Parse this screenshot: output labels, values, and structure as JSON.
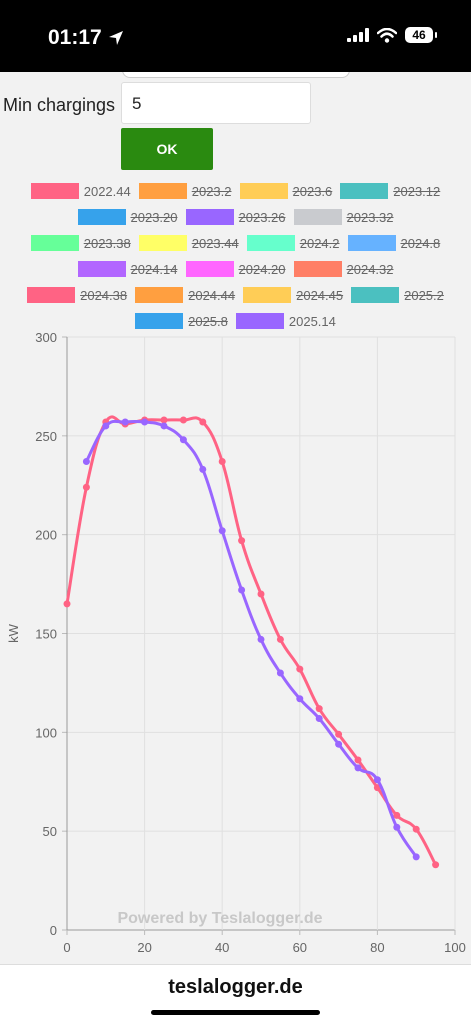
{
  "status_bar": {
    "time": "01:17",
    "battery": "46"
  },
  "form": {
    "min_chargings_label": "Min chargings",
    "min_chargings_value": "5",
    "ok_label": "OK"
  },
  "legend": {
    "rows": [
      [
        {
          "label": "2022.44",
          "color": "#ff6384",
          "hidden": false
        },
        {
          "label": "2023.2",
          "color": "#ff9f40",
          "hidden": true
        },
        {
          "label": "2023.6",
          "color": "#ffcd56",
          "hidden": true
        },
        {
          "label": "2023.12",
          "color": "#4bc0c0",
          "hidden": true
        }
      ],
      [
        {
          "label": "2023.20",
          "color": "#36a2eb",
          "hidden": true
        },
        {
          "label": "2023.26",
          "color": "#9966ff",
          "hidden": true
        },
        {
          "label": "2023.32",
          "color": "#c9cbcf",
          "hidden": true
        }
      ],
      [
        {
          "label": "2023.38",
          "color": "#66ff99",
          "hidden": true
        },
        {
          "label": "2023.44",
          "color": "#ffff66",
          "hidden": true
        },
        {
          "label": "2024.2",
          "color": "#66ffcc",
          "hidden": true
        },
        {
          "label": "2024.8",
          "color": "#66b2ff",
          "hidden": true
        }
      ],
      [
        {
          "label": "2024.14",
          "color": "#b266ff",
          "hidden": true
        },
        {
          "label": "2024.20",
          "color": "#ff66ff",
          "hidden": true
        },
        {
          "label": "2024.32",
          "color": "#ff7f66",
          "hidden": true
        }
      ],
      [
        {
          "label": "2024.38",
          "color": "#ff6384",
          "hidden": true
        },
        {
          "label": "2024.44",
          "color": "#ff9f40",
          "hidden": true
        },
        {
          "label": "2024.45",
          "color": "#ffcd56",
          "hidden": true
        },
        {
          "label": "2025.2",
          "color": "#4bc0c0",
          "hidden": true
        }
      ],
      [
        {
          "label": "2025.8",
          "color": "#36a2eb",
          "hidden": true
        },
        {
          "label": "2025.14",
          "color": "#9966ff",
          "hidden": false
        }
      ]
    ]
  },
  "chart_data": {
    "type": "line",
    "title": "",
    "xlabel": "",
    "ylabel": "kW",
    "xlim": [
      0,
      100
    ],
    "ylim": [
      0,
      300
    ],
    "x_ticks": [
      0,
      20,
      40,
      60,
      80,
      100
    ],
    "y_ticks": [
      0,
      50,
      100,
      150,
      200,
      250,
      300
    ],
    "grid": true,
    "watermark": "Powered by Teslalogger.de",
    "series": [
      {
        "name": "2022.44",
        "color": "#ff6384",
        "x": [
          0,
          5,
          10,
          15,
          20,
          25,
          30,
          35,
          40,
          45,
          50,
          55,
          60,
          65,
          70,
          75,
          80,
          85,
          90,
          95
        ],
        "y": [
          165,
          224,
          257,
          256,
          258,
          258,
          258,
          257,
          237,
          197,
          170,
          147,
          132,
          112,
          99,
          86,
          72,
          58,
          51,
          33
        ]
      },
      {
        "name": "2025.14",
        "color": "#9966ff",
        "x": [
          5,
          10,
          15,
          20,
          25,
          30,
          35,
          40,
          45,
          50,
          55,
          60,
          65,
          70,
          75,
          80,
          85,
          90
        ],
        "y": [
          237,
          255,
          257,
          257,
          255,
          248,
          233,
          202,
          172,
          147,
          130,
          117,
          107,
          94,
          82,
          76,
          52,
          37
        ]
      }
    ]
  },
  "bottom": {
    "url": "teslalogger.de"
  }
}
